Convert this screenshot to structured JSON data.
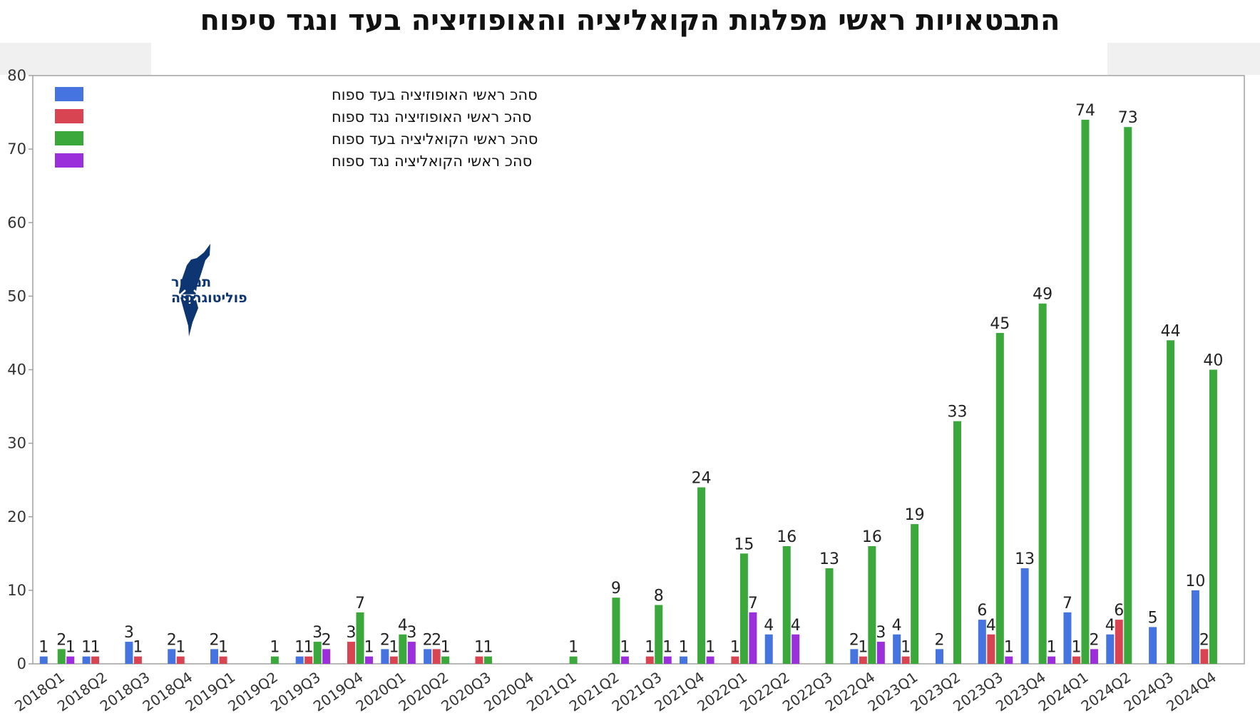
{
  "colors": {
    "opp_for": "#4573e0",
    "opp_against": "#d94452",
    "coal_for": "#3aa83a",
    "coal_against": "#9b2fdc",
    "logo": "#0c3572",
    "grid": "#e6e6e6",
    "frame": "#a0a0a0"
  },
  "logo": {
    "line1": "תמרור",
    "line2": "פוליטוגרפיה"
  },
  "chart_data": {
    "type": "bar",
    "title": "התבטאויות ראשי מפלגות הקואליציה והאופוזיציה בעד ונגד סיפוח",
    "xlabel": "",
    "ylabel": "",
    "ylim": [
      0,
      80
    ],
    "yticks": [
      0,
      10,
      20,
      30,
      40,
      50,
      60,
      70,
      80
    ],
    "grid": false,
    "legend_position": "top-left",
    "categories": [
      "2018Q1",
      "2018Q2",
      "2018Q3",
      "2018Q4",
      "2019Q1",
      "2019Q2",
      "2019Q3",
      "2019Q4",
      "2020Q1",
      "2020Q2",
      "2020Q3",
      "2020Q4",
      "2021Q1",
      "2021Q2",
      "2021Q3",
      "2021Q4",
      "2022Q1",
      "2022Q2",
      "2022Q3",
      "2022Q4",
      "2023Q1",
      "2023Q2",
      "2023Q3",
      "2023Q4",
      "2024Q1",
      "2024Q2",
      "2024Q3",
      "2024Q4"
    ],
    "series": [
      {
        "name": "סהכ ראשי האופוזיציה בעד ספוח",
        "color": "#4573e0",
        "values": [
          1,
          1,
          3,
          2,
          2,
          0,
          1,
          0,
          2,
          2,
          0,
          0,
          0,
          0,
          0,
          1,
          0,
          4,
          0,
          2,
          4,
          2,
          6,
          13,
          7,
          4,
          5,
          10
        ]
      },
      {
        "name": "סהכ ראשי האופוזיציה נגד ספוח",
        "color": "#d94452",
        "values": [
          0,
          1,
          1,
          1,
          1,
          0,
          1,
          3,
          1,
          2,
          1,
          0,
          0,
          0,
          1,
          0,
          1,
          0,
          0,
          1,
          1,
          0,
          4,
          0,
          1,
          6,
          0,
          2
        ]
      },
      {
        "name": "סהכ ראשי הקואליציה בעד ספוח",
        "color": "#3aa83a",
        "values": [
          2,
          0,
          0,
          0,
          0,
          1,
          3,
          7,
          4,
          1,
          1,
          0,
          1,
          9,
          8,
          24,
          15,
          16,
          13,
          16,
          19,
          33,
          45,
          49,
          74,
          73,
          44,
          40
        ]
      },
      {
        "name": "סהכ ראשי הקואליציה נגד ספוח",
        "color": "#9b2fdc",
        "values": [
          1,
          0,
          0,
          0,
          0,
          0,
          2,
          1,
          3,
          0,
          0,
          0,
          0,
          1,
          1,
          1,
          7,
          4,
          0,
          3,
          0,
          0,
          1,
          1,
          2,
          0,
          0,
          0
        ]
      }
    ]
  }
}
